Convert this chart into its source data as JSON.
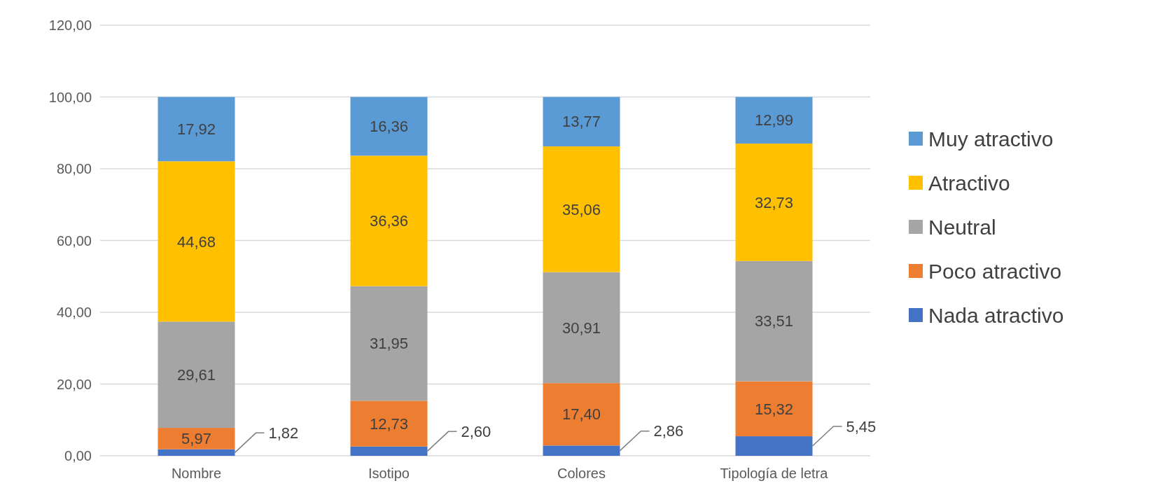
{
  "chart_data": {
    "type": "bar",
    "stacked": true,
    "categories": [
      "Nombre",
      "Isotipo",
      "Colores",
      "Tipología de letra"
    ],
    "series": [
      {
        "name": "Nada atractivo",
        "color": "#4472c4",
        "values": [
          1.82,
          2.6,
          2.86,
          5.45
        ],
        "value_labels": [
          "1,82",
          "2,60",
          "2,86",
          "5,45"
        ]
      },
      {
        "name": "Poco atractivo",
        "color": "#ed7d31",
        "values": [
          5.97,
          12.73,
          17.4,
          15.32
        ],
        "value_labels": [
          "5,97",
          "12,73",
          "17,40",
          "15,32"
        ]
      },
      {
        "name": "Neutral",
        "color": "#a5a5a5",
        "values": [
          29.61,
          31.95,
          30.91,
          33.51
        ],
        "value_labels": [
          "29,61",
          "31,95",
          "30,91",
          "33,51"
        ]
      },
      {
        "name": "Atractivo",
        "color": "#ffc000",
        "values": [
          44.68,
          36.36,
          35.06,
          32.73
        ],
        "value_labels": [
          "44,68",
          "36,36",
          "35,06",
          "32,73"
        ]
      },
      {
        "name": "Muy atractivo",
        "color": "#5b9bd5",
        "values": [
          17.92,
          16.36,
          13.77,
          12.99
        ],
        "value_labels": [
          "17,92",
          "16,36",
          "13,77",
          "12,99"
        ]
      }
    ],
    "ylim": [
      0,
      120
    ],
    "yticks": [
      {
        "value": 0,
        "label": "0,00"
      },
      {
        "value": 20,
        "label": "20,00"
      },
      {
        "value": 40,
        "label": "40,00"
      },
      {
        "value": 60,
        "label": "60,00"
      },
      {
        "value": 80,
        "label": "80,00"
      },
      {
        "value": 100,
        "label": "100,00"
      },
      {
        "value": 120,
        "label": "120,00"
      }
    ],
    "grid": "y",
    "legend": "right"
  }
}
